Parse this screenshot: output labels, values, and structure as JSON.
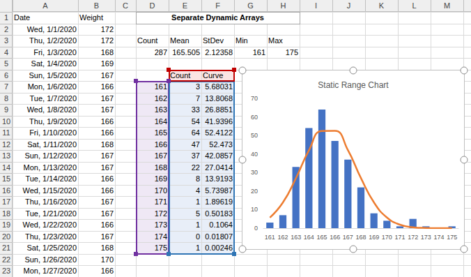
{
  "sheet": {
    "columns": [
      "A",
      "B",
      "C",
      "D",
      "E",
      "F",
      "G",
      "H",
      "I",
      "J",
      "K",
      "L",
      "M"
    ],
    "rows": [
      1,
      2,
      3,
      4,
      5,
      6,
      7,
      8,
      9,
      10,
      11,
      12,
      13,
      14,
      15,
      16,
      17,
      18,
      19,
      20,
      21,
      22,
      23
    ],
    "cells": {
      "A1": "Date",
      "B1": "Weight",
      "D1": "Separate Dynamic Arrays",
      "A2": "Wed, 1/1/2020",
      "B2": 172,
      "A3": "Thu, 1/2/2020",
      "B3": 172,
      "D3": "Count",
      "E3": "Mean",
      "F3": "StDev",
      "G3": "Min",
      "H3": "Max",
      "A4": "Fri, 1/3/2020",
      "B4": 168,
      "D4": 287,
      "E4": 165.505,
      "F4": 2.12358,
      "G4": 161,
      "H4": 175,
      "A5": "Sat, 1/4/2020",
      "B5": 169,
      "A6": "Sun, 1/5/2020",
      "B6": 167,
      "A7": "Mon, 1/6/2020",
      "B7": 166,
      "A8": "Tue, 1/7/2020",
      "B8": 167,
      "A9": "Wed, 1/8/2020",
      "B9": 167,
      "A10": "Thu, 1/9/2020",
      "B10": 166,
      "A11": "Fri, 1/10/2020",
      "B11": 166,
      "A12": "Sat, 1/11/2020",
      "B12": 168,
      "A13": "Sun, 1/12/2020",
      "B13": 167,
      "A14": "Mon, 1/13/2020",
      "B14": 167,
      "A15": "Tue, 1/14/2020",
      "B15": 166,
      "A16": "Wed, 1/15/2020",
      "B16": 166,
      "A17": "Thu, 1/16/2020",
      "B17": 167,
      "A18": "Tue, 1/21/2020",
      "B18": 167,
      "A19": "Wed, 1/22/2020",
      "B19": 166,
      "A20": "Thu, 1/23/2020",
      "B20": 167,
      "A21": "Sat, 1/25/2020",
      "B21": 168,
      "A22": "Sun, 1/26/2020",
      "B22": 170,
      "A23": "Mon, 1/27/2020",
      "B23": 166
    }
  },
  "chart_data": {
    "type": "bar",
    "title": "Static Range Chart",
    "categories": [
      "161",
      "162",
      "163",
      "164",
      "165",
      "166",
      "167",
      "168",
      "169",
      "170",
      "171",
      "172",
      "173",
      "174",
      "175"
    ],
    "series": [
      {
        "name": "Count",
        "type": "bar",
        "color": "#4472c4",
        "values": [
          3,
          7,
          33,
          54,
          64,
          47,
          37,
          22,
          8,
          4,
          1,
          5,
          1,
          0,
          1
        ]
      },
      {
        "name": "Curve",
        "type": "line",
        "color": "#ed7d31",
        "line_style": "smooth",
        "marker": "none",
        "values": [
          5.68031,
          13.8068,
          26.8851,
          41.9396,
          52.4122,
          52.473,
          42.0857,
          27.0414,
          13.9193,
          5.73987,
          1.89619,
          0.50183,
          0.1064,
          0.01807,
          0.00246
        ]
      }
    ],
    "ylim": [
      0,
      70
    ],
    "yticks": [
      0,
      10,
      20,
      30,
      40,
      50,
      60,
      70
    ],
    "grid": false
  }
}
